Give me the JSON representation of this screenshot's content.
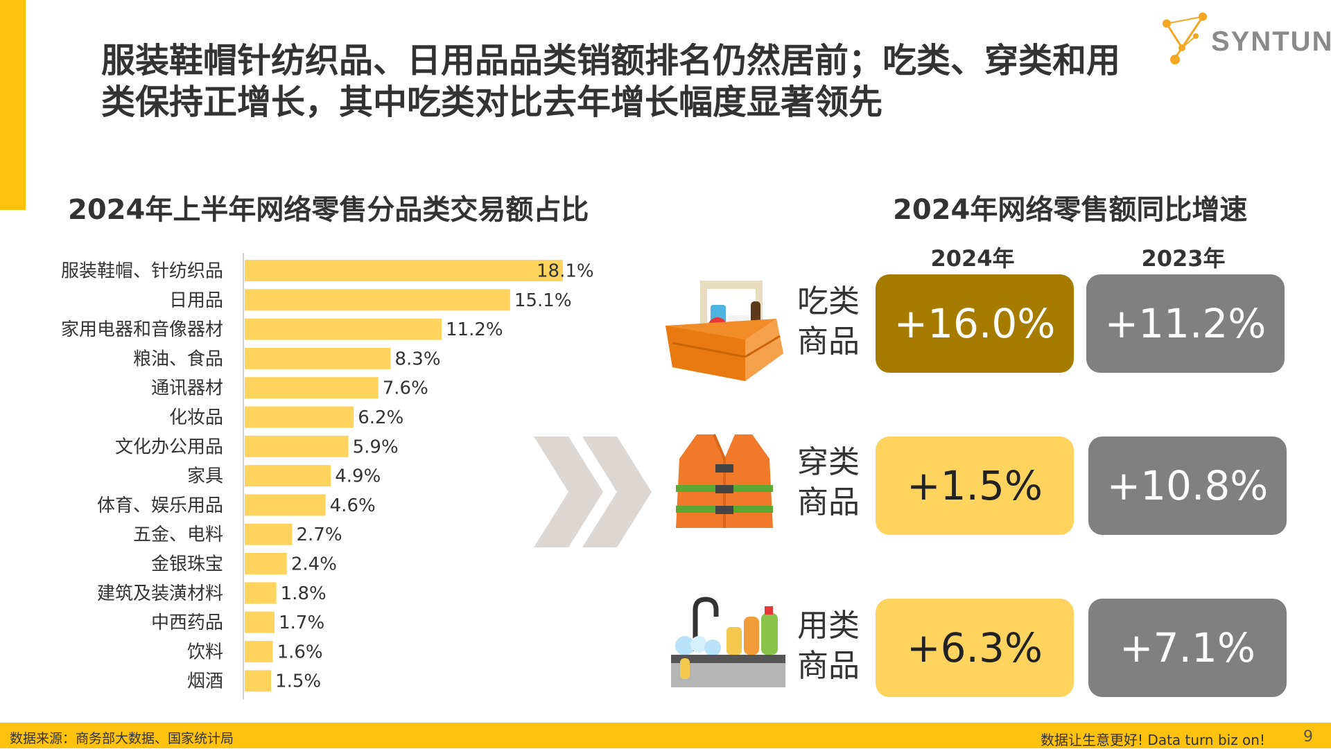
{
  "headline": "服装鞋帽针纺织品、日用品品类销额排名仍然居前；吃类、穿类和用类保持正增长，其中吃类对比去年增长幅度显著领先",
  "logo": {
    "text": "SYNTUN"
  },
  "colors": {
    "accent": "#FFC20E",
    "bar": "#FFD45E",
    "box_2024_highlight": "#A67C00",
    "box_2024": "#FFD45E",
    "box_2023": "#808080"
  },
  "left_title": "2024年上半年网络零售分品类交易额占比",
  "right_title": "2024年网络零售额同比增速",
  "chart_data": {
    "type": "bar",
    "orientation": "horizontal",
    "title": "2024年上半年网络零售分品类交易额占比",
    "unit": "%",
    "categories": [
      "服装鞋帽、针纺织品",
      "日用品",
      "家用电器和音像器材",
      "粮油、食品",
      "通讯器材",
      "化妆品",
      "文化办公用品",
      "家具",
      "体育、娱乐用品",
      "五金、电料",
      "金银珠宝",
      "建筑及装潢材料",
      "中西药品",
      "饮料",
      "烟酒"
    ],
    "values": [
      18.1,
      15.1,
      11.2,
      8.3,
      7.6,
      6.2,
      5.9,
      4.9,
      4.6,
      2.7,
      2.4,
      1.8,
      1.7,
      1.6,
      1.5
    ],
    "value_labels": [
      "18.1%",
      "15.1%",
      "11.2%",
      "8.3%",
      "7.6%",
      "6.2%",
      "5.9%",
      "4.9%",
      "4.6%",
      "2.7%",
      "2.4%",
      "1.8%",
      "1.7%",
      "1.6%",
      "1.5%"
    ]
  },
  "growth": {
    "years": [
      "2024年",
      "2023年"
    ],
    "rows": [
      {
        "category": "吃类商品",
        "line1": "吃类",
        "line2": "商品",
        "icon": "food-basket-icon",
        "v2024": "+16.0%",
        "v2023": "+11.2%",
        "highlight": true
      },
      {
        "category": "穿类商品",
        "line1": "穿类",
        "line2": "商品",
        "icon": "vest-icon",
        "v2024": "+1.5%",
        "v2023": "+10.8%",
        "highlight": false
      },
      {
        "category": "用类商品",
        "line1": "用类",
        "line2": "商品",
        "icon": "sink-icon",
        "v2024": "+6.3%",
        "v2023": "+7.1%",
        "highlight": false
      }
    ]
  },
  "footer": {
    "source": "数据来源：商务部大数据、国家统计局",
    "slogan": "数据让生意更好! Data turn biz on!",
    "page": "9"
  }
}
